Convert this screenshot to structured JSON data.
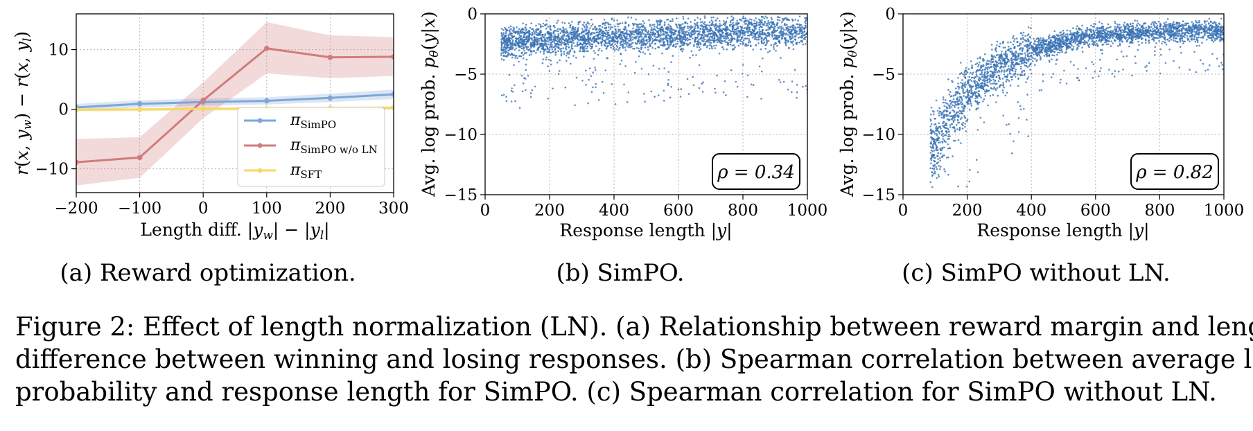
{
  "caption": {
    "line1": "Figure 2: Effect of length normalization (LN). (a) Relationship between reward margin and length",
    "line2": "difference between winning and losing responses. (b) Spearman correlation between average log",
    "line3": "probability and response length for SimPO. (c) Spearman correlation for SimPO without LN."
  },
  "chart_data": [
    {
      "type": "line",
      "subcaption": "(a) Reward optimization.",
      "xlabel": "Length diff. |y_w| − |y_l|",
      "ylabel": "r(x, y_w) − r(x, y_l)",
      "xlim": [
        -200,
        300
      ],
      "ylim": [
        -14,
        16
      ],
      "xticks": [
        -200,
        -100,
        0,
        100,
        200,
        300
      ],
      "xtick_labels": [
        "−200",
        "−100",
        "0",
        "100",
        "200",
        "300"
      ],
      "yticks": [
        -10,
        0,
        10
      ],
      "ytick_labels": [
        "−10",
        "0",
        "10"
      ],
      "grid": true,
      "legend_position": "lower right",
      "x": [
        -200,
        -100,
        0,
        100,
        200,
        300
      ],
      "series": [
        {
          "name": "π_SimPO",
          "color": "#7ea6d8",
          "values": [
            0.3,
            0.9,
            1.2,
            1.4,
            1.9,
            2.5
          ],
          "lower": [
            -0.3,
            0.3,
            0.6,
            0.8,
            1.2,
            1.7
          ],
          "upper": [
            0.9,
            1.5,
            1.8,
            2.0,
            2.6,
            3.3
          ]
        },
        {
          "name": "π_SimPO w/o LN",
          "color": "#d27b7b",
          "values": [
            -8.9,
            -8.1,
            1.5,
            10.2,
            8.7,
            8.8
          ],
          "lower": [
            -12.8,
            -11.5,
            -1.5,
            6.0,
            5.2,
            5.6
          ],
          "upper": [
            -5.0,
            -4.7,
            4.5,
            14.6,
            12.4,
            12.1
          ]
        },
        {
          "name": "π_SFT",
          "color": "#f5d86b",
          "values": [
            -0.1,
            -0.05,
            0.05,
            0.1,
            0.15,
            0.25
          ],
          "lower": [
            -0.4,
            -0.35,
            -0.25,
            -0.2,
            -0.15,
            -0.05
          ],
          "upper": [
            0.2,
            0.25,
            0.35,
            0.4,
            0.45,
            0.55
          ]
        }
      ]
    },
    {
      "type": "scatter",
      "subcaption": "(b) SimPO.",
      "xlabel": "Response length |y|",
      "ylabel": "Avg. log prob. p_θ(y|x)",
      "xlim": [
        0,
        1000
      ],
      "ylim": [
        -15,
        0
      ],
      "xticks": [
        0,
        200,
        400,
        600,
        800,
        1000
      ],
      "xtick_labels": [
        "0",
        "200",
        "400",
        "600",
        "800",
        "1000"
      ],
      "yticks": [
        0,
        -5,
        -10,
        -15
      ],
      "ytick_labels": [
        "0",
        "−5",
        "−10",
        "−15"
      ],
      "grid": true,
      "color": "#3a73b5",
      "annotation": "ρ = 0.34",
      "annotation_position": "lower right",
      "point_count": 3000,
      "distribution_sample": [
        [
          60,
          -2.4
        ],
        [
          100,
          -2.3
        ],
        [
          200,
          -2.1
        ],
        [
          300,
          -2.0
        ],
        [
          400,
          -1.9
        ],
        [
          500,
          -1.8
        ],
        [
          600,
          -1.7
        ],
        [
          700,
          -1.6
        ],
        [
          800,
          -1.5
        ],
        [
          900,
          -1.45
        ],
        [
          1000,
          -1.4
        ]
      ]
    },
    {
      "type": "scatter",
      "subcaption": "(c) SimPO without LN.",
      "xlabel": "Response length |y|",
      "ylabel": "Avg. log prob. p_θ(y|x)",
      "xlim": [
        0,
        1000
      ],
      "ylim": [
        -15,
        0
      ],
      "xticks": [
        0,
        200,
        400,
        600,
        800,
        1000
      ],
      "xtick_labels": [
        "0",
        "200",
        "400",
        "600",
        "800",
        "1000"
      ],
      "yticks": [
        0,
        -5,
        -10,
        -15
      ],
      "ytick_labels": [
        "0",
        "−5",
        "−10",
        "−15"
      ],
      "grid": true,
      "color": "#3a73b5",
      "annotation": "ρ = 0.82",
      "annotation_position": "lower right",
      "point_count": 3000,
      "distribution_sample": [
        [
          100,
          -11.0
        ],
        [
          150,
          -8.5
        ],
        [
          200,
          -6.5
        ],
        [
          300,
          -4.4
        ],
        [
          400,
          -3.0
        ],
        [
          500,
          -2.3
        ],
        [
          600,
          -1.8
        ],
        [
          700,
          -1.6
        ],
        [
          800,
          -1.5
        ],
        [
          900,
          -1.45
        ],
        [
          1000,
          -1.4
        ]
      ]
    }
  ]
}
